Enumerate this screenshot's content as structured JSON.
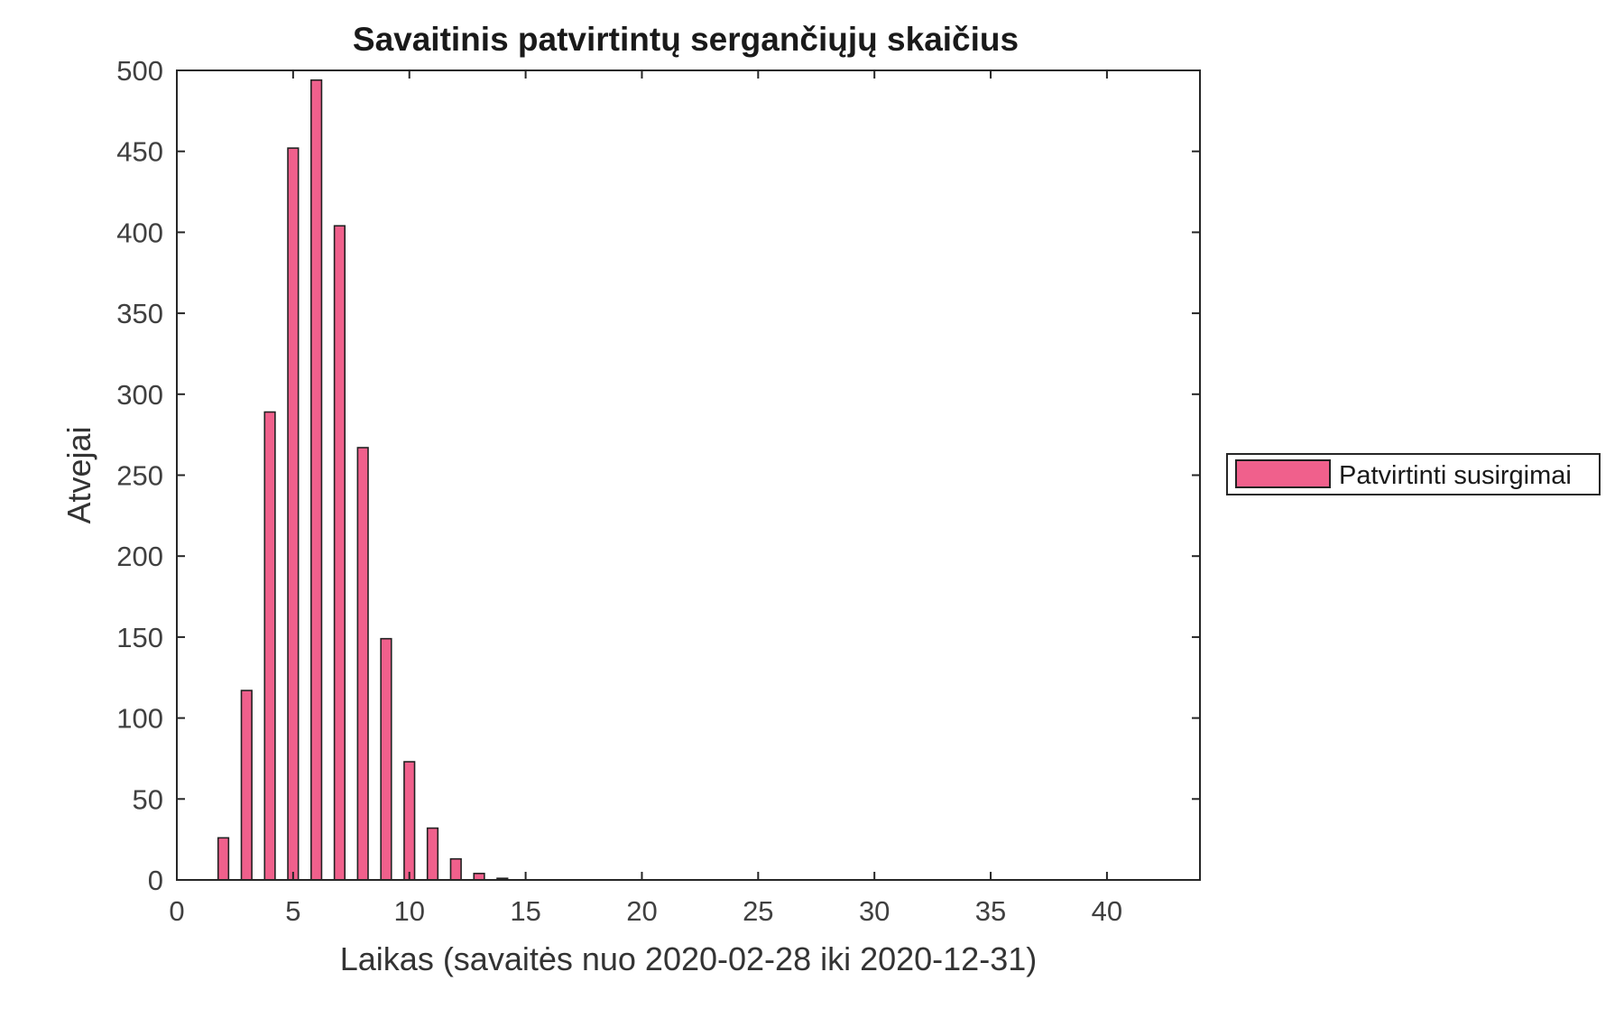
{
  "chart_data": {
    "type": "bar",
    "title": "Savaitinis patvirtintų sergančiųjų skaičius",
    "xlabel": "Laikas (savaitės nuo 2020-02-28 iki 2020-12-31)",
    "ylabel": "Atvejai",
    "xlim": [
      0,
      44
    ],
    "ylim": [
      0,
      500
    ],
    "xticks": [
      0,
      5,
      10,
      15,
      20,
      25,
      30,
      35,
      40
    ],
    "yticks": [
      0,
      50,
      100,
      150,
      200,
      250,
      300,
      350,
      400,
      450,
      500
    ],
    "grid": false,
    "legend_position": "outside-right",
    "bar_color": "#f0608c",
    "edge_color": "#222222",
    "series": [
      {
        "name": "Patvirtinti susirgimai",
        "x": [
          2,
          3,
          4,
          5,
          6,
          7,
          8,
          9,
          10,
          11,
          12,
          13,
          14
        ],
        "values": [
          26,
          117,
          289,
          452,
          494,
          404,
          267,
          149,
          73,
          32,
          13,
          4,
          1
        ]
      }
    ]
  }
}
